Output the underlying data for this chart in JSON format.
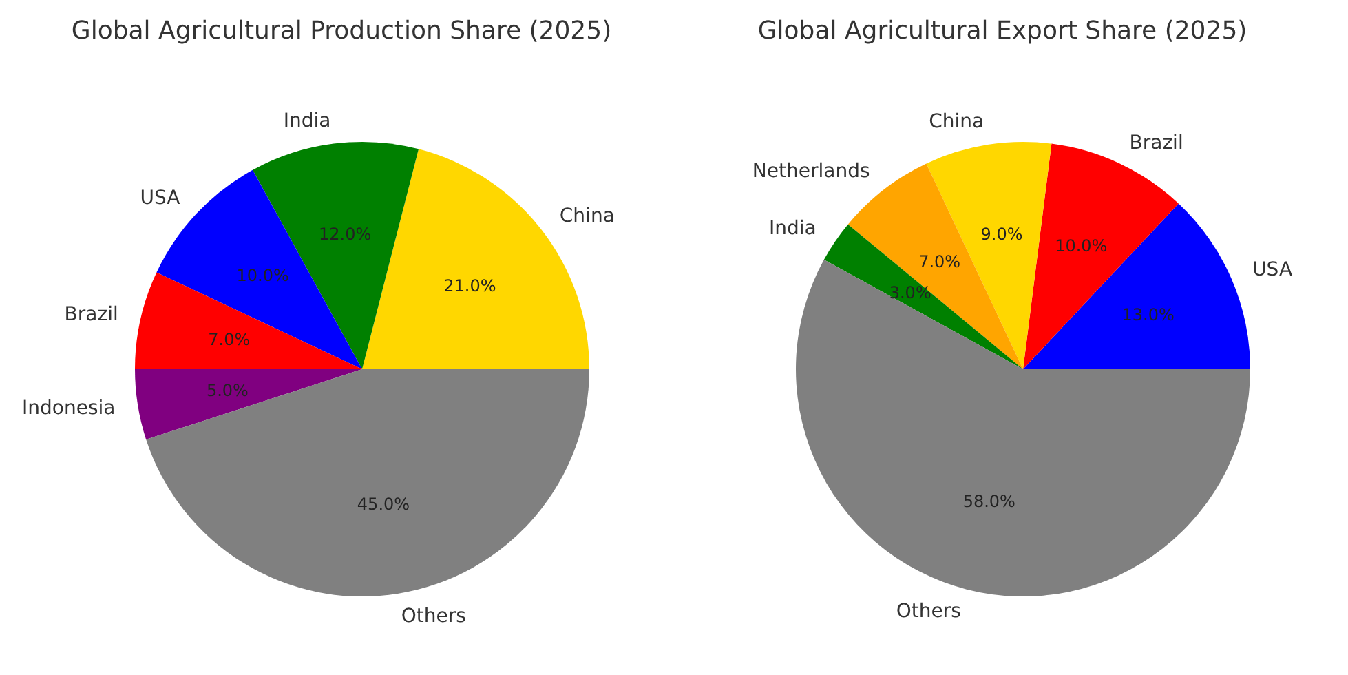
{
  "chart_data": [
    {
      "type": "pie",
      "title": "Global Agricultural Production Share (2025)",
      "categories": [
        "China",
        "India",
        "USA",
        "Brazil",
        "Indonesia",
        "Others"
      ],
      "values": [
        21,
        12,
        10,
        7,
        5,
        45
      ],
      "colors": [
        "#ffd700",
        "#008000",
        "#0000ff",
        "#ff0000",
        "#800080",
        "#808080"
      ],
      "value_labels": [
        "21.0%",
        "12.0%",
        "10.0%",
        "7.0%",
        "5.0%",
        "45.0%"
      ]
    },
    {
      "type": "pie",
      "title": "Global Agricultural Export Share (2025)",
      "categories": [
        "USA",
        "Brazil",
        "China",
        "Netherlands",
        "India",
        "Others"
      ],
      "values": [
        13,
        10,
        9,
        7,
        3,
        58
      ],
      "colors": [
        "#0000ff",
        "#ff0000",
        "#ffd700",
        "#ffa500",
        "#008000",
        "#808080"
      ],
      "value_labels": [
        "13.0%",
        "10.0%",
        "9.0%",
        "7.0%",
        "3.0%",
        "58.0%"
      ]
    }
  ]
}
